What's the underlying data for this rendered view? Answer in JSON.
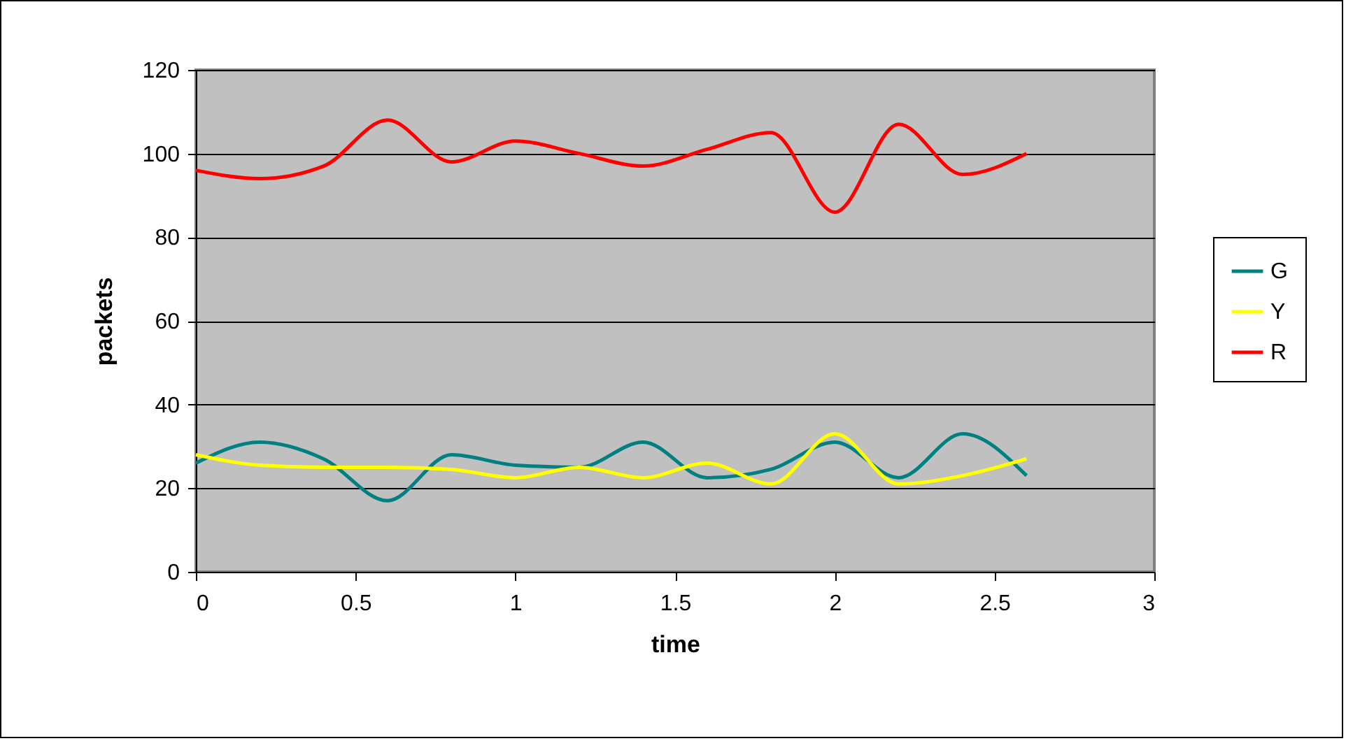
{
  "chart_data": {
    "type": "line",
    "xlabel": "time",
    "ylabel": "packets",
    "x": [
      0,
      0.2,
      0.4,
      0.6,
      0.8,
      1.0,
      1.2,
      1.4,
      1.6,
      1.8,
      2.0,
      2.2,
      2.4,
      2.6
    ],
    "series": [
      {
        "name": "G",
        "color": "#008080",
        "values": [
          26,
          31,
          27,
          17,
          28,
          25.5,
          25,
          31,
          22.5,
          24.5,
          31,
          22.5,
          33,
          23
        ]
      },
      {
        "name": "Y",
        "color": "#ffff00",
        "values": [
          28,
          25.5,
          25,
          25,
          24.5,
          22.5,
          25,
          22.5,
          26,
          21,
          33,
          21,
          23,
          27
        ]
      },
      {
        "name": "R",
        "color": "#ff0000",
        "values": [
          96,
          94,
          97,
          108,
          98,
          103,
          100,
          97,
          101,
          105,
          86,
          107,
          95,
          100
        ]
      }
    ],
    "xlim": [
      0,
      3
    ],
    "xticks": [
      0,
      0.5,
      1,
      1.5,
      2,
      2.5,
      3
    ],
    "ylim": [
      0,
      120
    ],
    "yticks": [
      0,
      20,
      40,
      60,
      80,
      100,
      120
    ],
    "grid": "y",
    "legend": "right",
    "marker": "none",
    "line_style": "solid"
  }
}
